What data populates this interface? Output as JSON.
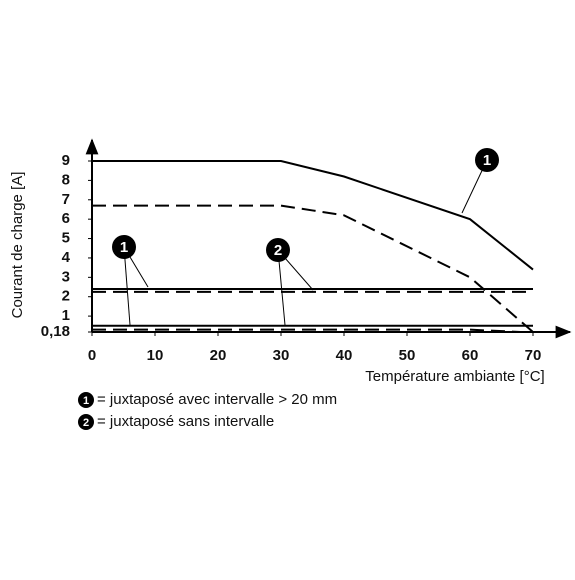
{
  "chart_data": {
    "type": "line",
    "xlabel": "Température ambiante [°C]",
    "ylabel": "Courant de charge [A]",
    "xlim": [
      0,
      73
    ],
    "ylim": [
      0.18,
      9.8
    ],
    "xticks": [
      0,
      10,
      20,
      30,
      40,
      50,
      60,
      70
    ],
    "yticks": [
      {
        "value": 0.18,
        "label": "0,18"
      },
      1,
      2,
      3,
      4,
      5,
      6,
      7,
      8,
      9
    ],
    "series": [
      {
        "color": "#000000",
        "dash": false,
        "x": [
          0,
          30,
          40,
          60,
          70
        ],
        "values": [
          9,
          9,
          8.2,
          6,
          3.4
        ]
      },
      {
        "color": "#000000",
        "dash": true,
        "x": [
          0,
          30,
          35,
          40,
          60,
          70
        ],
        "values": [
          6.7,
          6.7,
          6.45,
          6.2,
          3,
          0.18
        ]
      },
      {
        "color": "#000000",
        "dash": false,
        "x": [
          0,
          70
        ],
        "values": [
          2.4,
          2.4
        ]
      },
      {
        "color": "#000000",
        "dash": true,
        "x": [
          0,
          70
        ],
        "values": [
          2.25,
          2.25
        ]
      },
      {
        "color": "#000000",
        "dash": false,
        "x": [
          0,
          70
        ],
        "values": [
          0.5,
          0.5
        ]
      },
      {
        "color": "#000000",
        "dash": true,
        "x": [
          0,
          60,
          68
        ],
        "values": [
          0.3,
          0.3,
          0.18
        ]
      }
    ],
    "callouts": [
      "1",
      "1",
      "2"
    ],
    "legend": [
      {
        "marker": "1",
        "text": "= juxtaposé avec intervalle > 20 mm"
      },
      {
        "marker": "2",
        "text": "= juxtaposé sans intervalle"
      }
    ]
  }
}
